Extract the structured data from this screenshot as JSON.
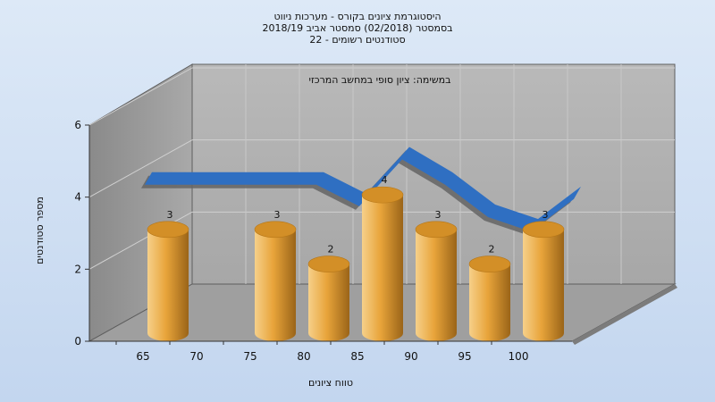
{
  "chart_data": {
    "type": "bar",
    "title_lines": [
      "היסטוגרמת ציונים בקורס - מערכות ניווט",
      "בסמסטר  (02/2018)  סמסטר אביב 2018/19",
      "סטודנטים רשומים - 22"
    ],
    "annotation": "במשימה: ציון סופי במחשב המרכזי",
    "xlabel": "טווח ציונים",
    "ylabel": "מספר סטודנטים",
    "x_ticks": [
      "65",
      "70",
      "75",
      "80",
      "85",
      "90",
      "95",
      "100"
    ],
    "y_ticks": [
      "0",
      "2",
      "4",
      "6"
    ],
    "ylim": [
      0,
      6
    ],
    "categories": [
      "65",
      "70",
      "75",
      "80",
      "85",
      "90",
      "95",
      "100"
    ],
    "values": [
      3,
      null,
      3,
      2,
      4,
      3,
      2,
      3
    ],
    "value_labels": [
      "3",
      "",
      "3",
      "2",
      "4",
      "3",
      "2",
      "3"
    ],
    "curve": {
      "x": [
        64,
        70,
        76,
        80,
        84,
        88,
        92,
        96,
        100,
        104
      ],
      "y": [
        3.9,
        3.9,
        3.9,
        3.9,
        3.3,
        4.6,
        3.9,
        3.0,
        2.6,
        3.5
      ]
    },
    "colors": {
      "bar": "#e8a43a",
      "curve": "#2f6fc2",
      "curve_shadow": "#646464",
      "wall": "#b8b8b8",
      "floor": "#9c9c9c"
    }
  }
}
